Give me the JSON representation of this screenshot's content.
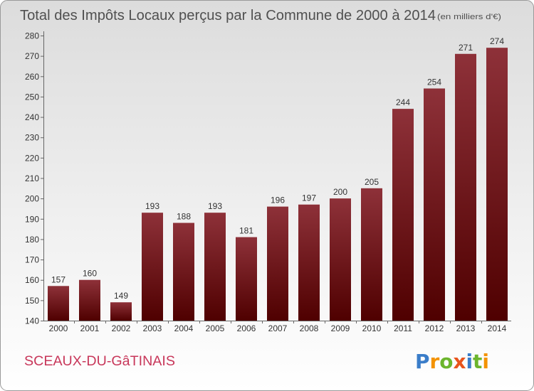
{
  "chart_data": {
    "type": "bar",
    "title": "Total des Impôts Locaux perçus par la Commune de 2000 à 2014",
    "subtitle": "(en milliers d'€)",
    "categories": [
      "2000",
      "2001",
      "2002",
      "2003",
      "2004",
      "2005",
      "2006",
      "2007",
      "2008",
      "2009",
      "2010",
      "2011",
      "2012",
      "2013",
      "2014"
    ],
    "values": [
      157,
      160,
      149,
      193,
      188,
      193,
      181,
      196,
      197,
      200,
      205,
      244,
      254,
      271,
      274
    ],
    "ylim": [
      140,
      280
    ],
    "yticks": [
      140,
      150,
      160,
      170,
      180,
      190,
      200,
      210,
      220,
      230,
      240,
      250,
      260,
      270,
      280
    ],
    "grid": false,
    "legend": "none"
  },
  "commune": "SCEAUX-DU-GâTINAIS",
  "logo": {
    "text": "Proxiti",
    "letter_colors": [
      "#3a7dc9",
      "#f39200",
      "#6cb52d",
      "#e8541c",
      "#3a7dc9",
      "#6cb52d",
      "#f39200"
    ]
  },
  "colors": {
    "bar_top": "#8e3139",
    "bar_bottom": "#4f0000",
    "title": "#505050",
    "commune": "#c8375a",
    "axis": "#666666",
    "background_top": "#dcdcdc",
    "background_bottom": "#ffffff"
  }
}
